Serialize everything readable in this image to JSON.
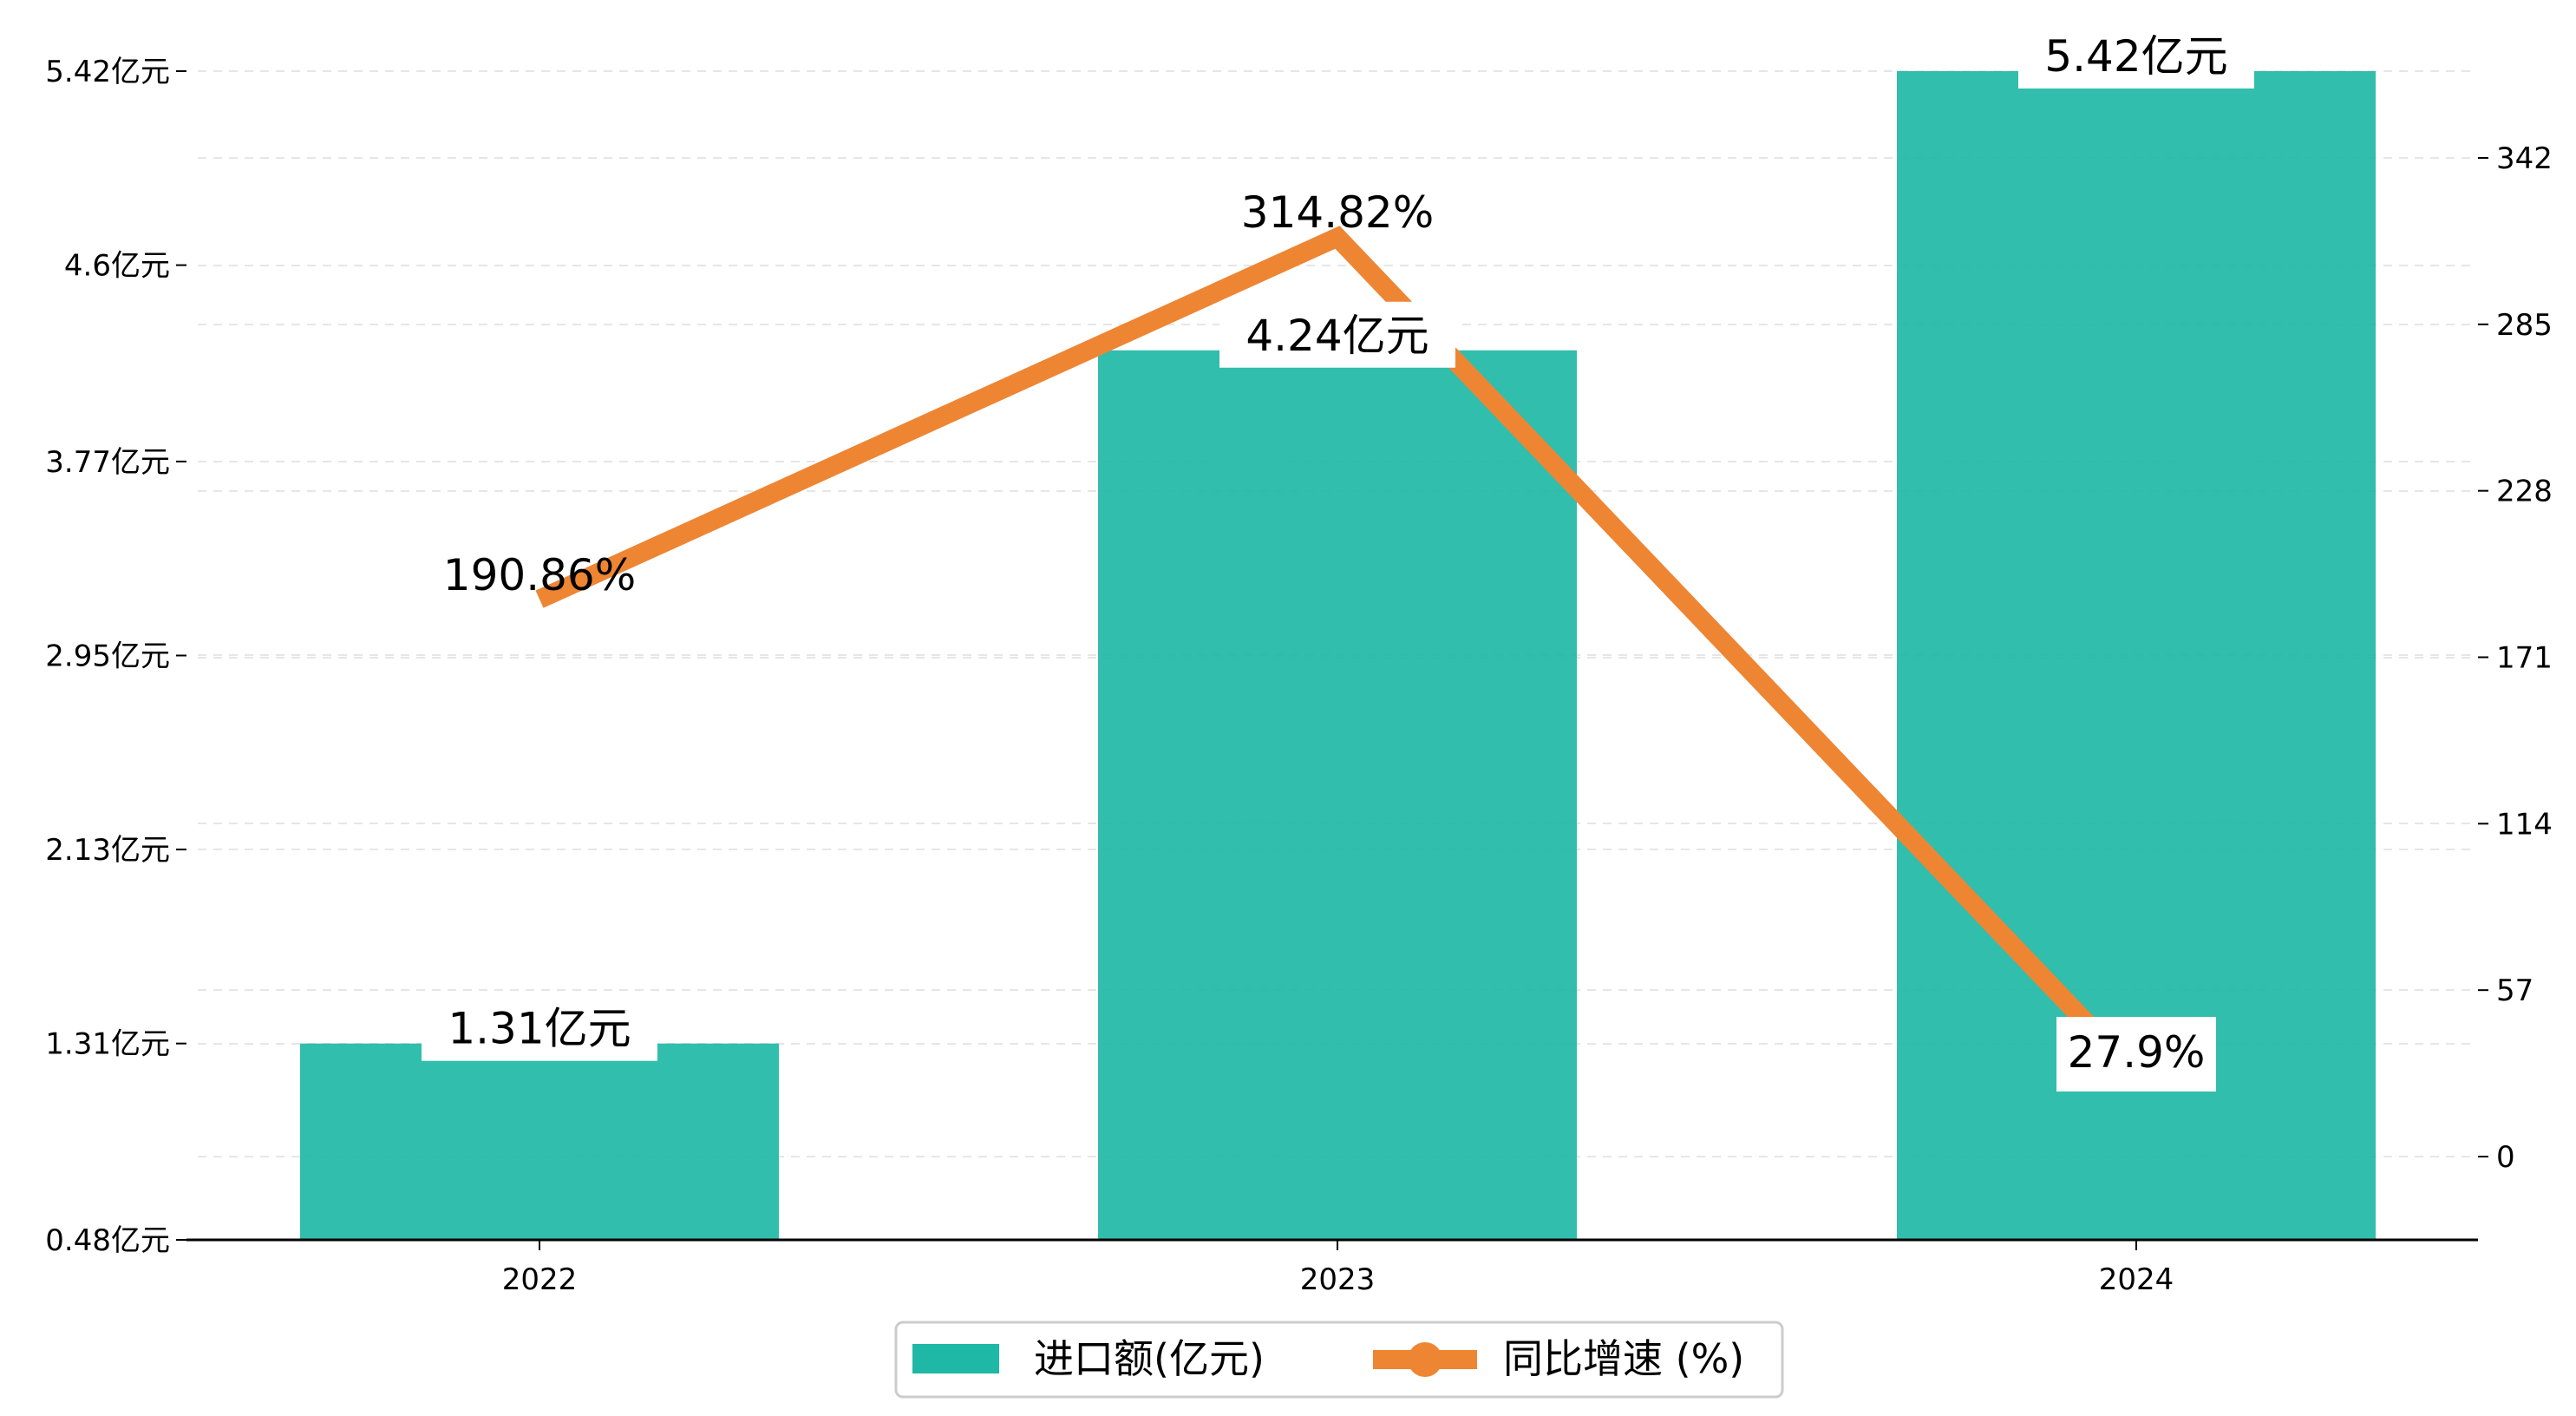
{
  "chart_data": {
    "type": "bar",
    "categories": [
      "2022",
      "2023",
      "2024"
    ],
    "series": [
      {
        "name": "进口额(亿元)",
        "kind": "bar",
        "axis": "left",
        "values": [
          1.31,
          4.24,
          5.42
        ],
        "labels": [
          "1.31亿元",
          "4.24亿元",
          "5.42亿元"
        ],
        "color": "#1fb8a6"
      },
      {
        "name": "同比增速 (%)",
        "kind": "line",
        "axis": "right",
        "values": [
          190.86,
          314.82,
          27.9
        ],
        "labels": [
          "190.86%",
          "314.82%",
          "27.9%"
        ],
        "color": "#ee8533"
      }
    ],
    "y_left": {
      "ticks": [
        0.48,
        1.31,
        2.13,
        2.95,
        3.77,
        4.6,
        5.42
      ],
      "tick_labels": [
        "0.48亿元",
        "1.31亿元",
        "2.13亿元",
        "2.95亿元",
        "3.77亿元",
        "4.6亿元",
        "5.42亿元"
      ],
      "ylim": [
        0.48,
        5.42
      ]
    },
    "y_right": {
      "ticks": [
        0,
        57,
        114,
        171,
        228,
        285,
        342
      ],
      "tick_labels": [
        "0",
        "57",
        "114",
        "171",
        "228",
        "285",
        "342"
      ],
      "ylim": [
        -28.5,
        370.5
      ]
    },
    "grid": true,
    "legend_position": "bottom-center",
    "title": "",
    "xlabel": "",
    "ylabel": ""
  }
}
